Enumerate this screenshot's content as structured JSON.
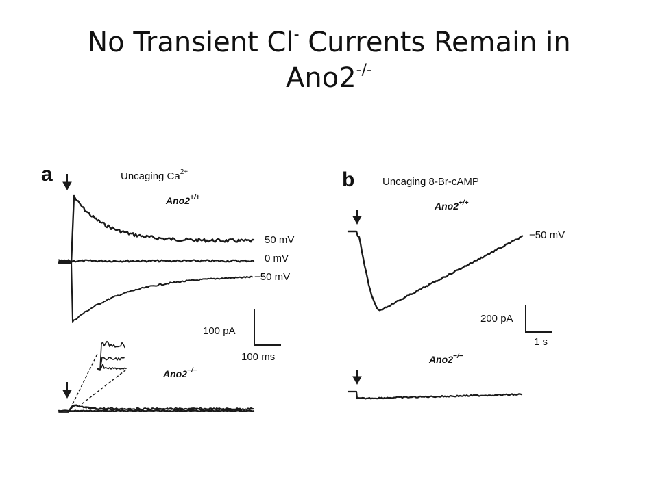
{
  "slide": {
    "title_main": "No Transient Cl",
    "title_sup1": "-",
    "title_mid": " Currents Remain in",
    "title_line2": "Ano2",
    "title_sup2": "-/-"
  },
  "panel_a": {
    "letter": "a",
    "caption": "Uncaging Ca",
    "caption_sup": "2+",
    "wt_label": "Ano2",
    "wt_sup": "+/+",
    "ko_label": "Ano2",
    "ko_sup": "−/−",
    "voltages": [
      "50 mV",
      "0 mV",
      "−50 mV"
    ],
    "scale_current": "100 pA",
    "scale_time": "100 ms"
  },
  "panel_b": {
    "letter": "b",
    "caption": "Uncaging 8-Br-cAMP",
    "wt_label": "Ano2",
    "wt_sup": "+/+",
    "ko_label": "Ano2",
    "ko_sup": "−/−",
    "voltage": "−50 mV",
    "scale_current": "200 pA",
    "scale_time": "1 s"
  },
  "colors": {
    "trace": "#1a1a1a",
    "text": "#111111",
    "background": "#ffffff"
  }
}
